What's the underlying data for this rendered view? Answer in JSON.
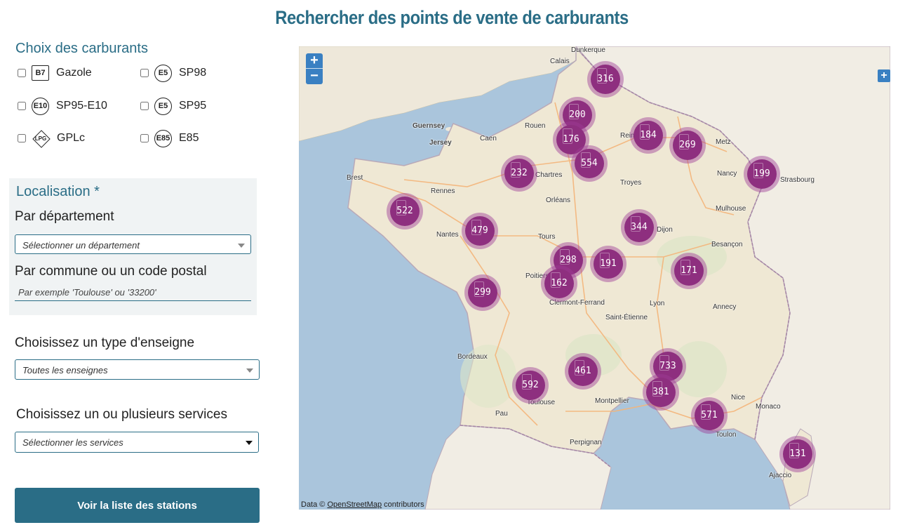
{
  "page_title": "Rechercher des points de vente de carburants",
  "fuels": {
    "title": "Choix des carburants",
    "items": [
      {
        "badge": "B7",
        "label": "Gazole",
        "shape": "square"
      },
      {
        "badge": "E5",
        "label": "SP98",
        "shape": "circle"
      },
      {
        "badge": "E10",
        "label": "SP95-E10",
        "shape": "circle"
      },
      {
        "badge": "E5",
        "label": "SP95",
        "shape": "circle"
      },
      {
        "badge": "LPG",
        "label": "GPLc",
        "shape": "diamond"
      },
      {
        "badge": "E85",
        "label": "E85",
        "shape": "circle"
      }
    ]
  },
  "localisation": {
    "title": "Localisation *",
    "departement_label": "Par département",
    "departement_select": "Sélectionner un département",
    "commune_label": "Par commune ou un code postal",
    "commune_placeholder": "Par exemple 'Toulouse' ou '33200'"
  },
  "enseigne": {
    "label": "Choisissez un type d'enseigne",
    "select": "Toutes les enseignes"
  },
  "services": {
    "label": "Choisissez un ou plusieurs services",
    "select": "Sélectionner les services"
  },
  "cta_label": "Voir la liste des stations",
  "map": {
    "zoom_in": "+",
    "zoom_out": "−",
    "layers": "+",
    "attribution_prefix": "Data © ",
    "attribution_link": "OpenStreetMap",
    "attribution_suffix": " contributors",
    "cities": [
      "Dunkerque",
      "Calais",
      "Guernsey",
      "Jersey",
      "Caen",
      "Rouen",
      "Reims",
      "Metz",
      "Brest",
      "Rennes",
      "Chartres",
      "Nancy",
      "Strasbourg",
      "Troyes",
      "Orléans",
      "Mulhouse",
      "Nantes",
      "Tours",
      "Dijon",
      "Besançon",
      "Poitiers",
      "Clermont-Ferrand",
      "Lyon",
      "Annecy",
      "Saint-Étienne",
      "Bordeaux",
      "Montpellier",
      "Nice",
      "Monaco",
      "Pau",
      "Toulouse",
      "Perpignan",
      "Toulon",
      "Ajaccio"
    ],
    "clusters": [
      316,
      200,
      176,
      184,
      269,
      554,
      232,
      199,
      522,
      479,
      344,
      298,
      191,
      162,
      171,
      299,
      733,
      461,
      592,
      381,
      571,
      131
    ],
    "colors": {
      "cluster": "#8e2f7f",
      "halo": "#9d3c96",
      "sea": "#aac5dc",
      "land": "#efe9dc",
      "accent": "#2a6d86"
    }
  }
}
